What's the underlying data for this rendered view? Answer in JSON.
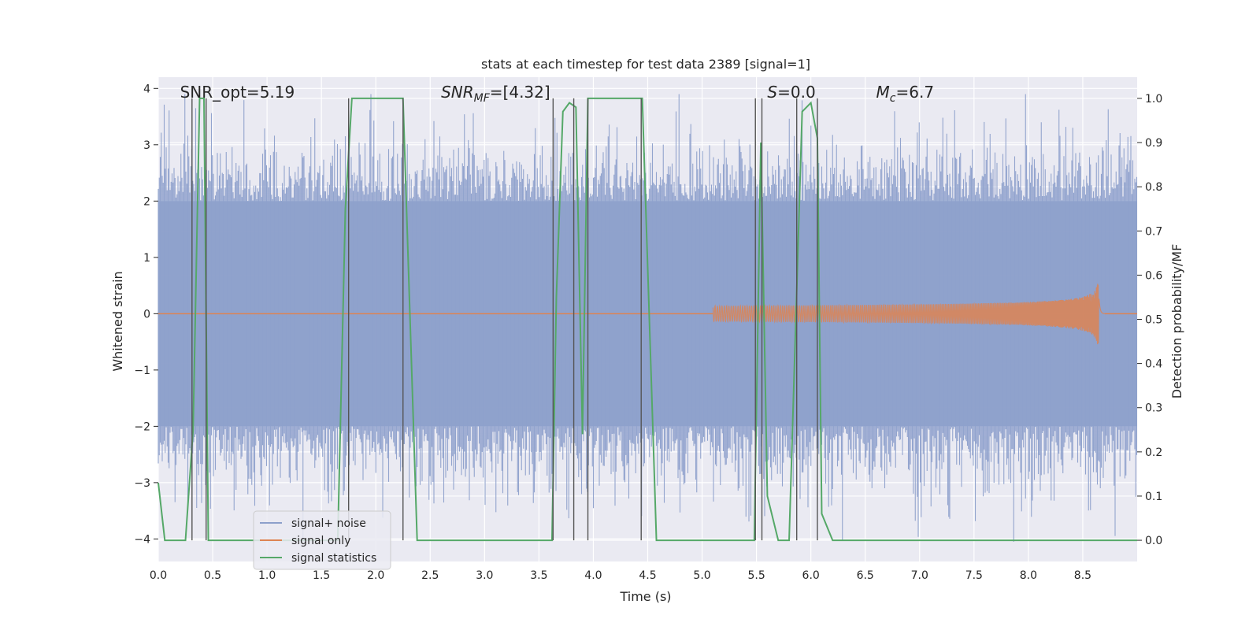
{
  "chart_data": {
    "type": "line",
    "title": "stats at each timestep for test data 2389 [signal=1]",
    "xlabel": "Time (s)",
    "ylabel": "Whitened strain",
    "y2label": "Detection probability/MF",
    "xlim": [
      0.0,
      9.0
    ],
    "ylim": [
      -4.4,
      4.2
    ],
    "y2lim": [
      -0.048,
      1.048
    ],
    "xticks": [
      "0.0",
      "0.5",
      "1.0",
      "1.5",
      "2.0",
      "2.5",
      "3.0",
      "3.5",
      "4.0",
      "4.5",
      "5.0",
      "5.5",
      "6.0",
      "6.5",
      "7.0",
      "7.5",
      "8.0",
      "8.5"
    ],
    "yticks": [
      "−4",
      "−3",
      "−2",
      "−1",
      "0",
      "1",
      "2",
      "3",
      "4"
    ],
    "y2ticks": [
      "0.0",
      "0.1",
      "0.2",
      "0.3",
      "0.4",
      "0.5",
      "0.6",
      "0.7",
      "0.8",
      "0.9",
      "1.0"
    ],
    "grid": true,
    "legend_position": "lower-left",
    "annotations": [
      {
        "text": "SNR_opt=5.19",
        "x": 0.2
      },
      {
        "text": "SNR_MF=[4.32]",
        "x": 2.6
      },
      {
        "text": "S=0.0",
        "x": 5.6
      },
      {
        "text": "M_c=6.7",
        "x": 6.6
      }
    ],
    "series": [
      {
        "name": "signal+ noise",
        "axis": "left",
        "color": "#8da0cb",
        "kind": "noise",
        "t_end": 9.0,
        "core_amplitude": 2.0,
        "peak_range": [
          2.2,
          3.8
        ]
      },
      {
        "name": "signal only",
        "axis": "left",
        "color": "#dd8452",
        "kind": "chirp",
        "t_start": 5.1,
        "t_merge": 8.65,
        "t_end": 8.7,
        "peak_amplitude": 0.75
      },
      {
        "name": "signal statistics",
        "axis": "right",
        "color": "#55a868",
        "kind": "line",
        "x": [
          0.0,
          0.06,
          0.25,
          0.32,
          0.38,
          0.42,
          0.46,
          0.5,
          0.55,
          0.65,
          1.65,
          1.72,
          1.78,
          2.25,
          2.38,
          3.62,
          3.66,
          3.72,
          3.78,
          3.84,
          3.9,
          3.95,
          4.45,
          4.58,
          5.48,
          5.54,
          5.6,
          5.7,
          5.8,
          5.92,
          6.0,
          6.06,
          6.1,
          6.2,
          9.0
        ],
        "y": [
          0.13,
          0.0,
          0.0,
          0.25,
          1.0,
          1.0,
          0.0,
          0.0,
          0.0,
          0.0,
          0.0,
          0.75,
          1.0,
          1.0,
          0.0,
          0.0,
          0.55,
          0.97,
          0.99,
          0.98,
          0.24,
          1.0,
          1.0,
          0.0,
          0.0,
          0.9,
          0.1,
          0.0,
          0.0,
          0.97,
          0.99,
          0.91,
          0.06,
          0.0,
          0.0
        ]
      }
    ],
    "vlines": [
      0.31,
      0.44,
      1.75,
      2.25,
      3.63,
      3.82,
      3.95,
      4.44,
      5.49,
      5.55,
      5.87,
      6.06
    ],
    "vline_color": "#555555"
  }
}
